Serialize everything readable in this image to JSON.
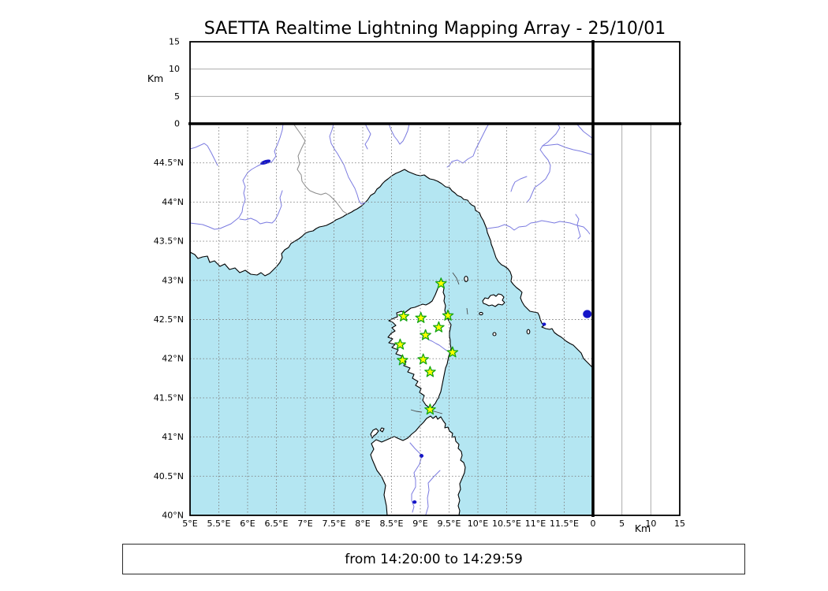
{
  "title": "SAETTA Realtime Lightning Mapping Array - 25/10/01",
  "time_window": "from 14:20:00 to 14:29:59",
  "colors": {
    "sea": "#b4e6f2",
    "land": "#ffffff",
    "coast": "#000000",
    "river": "#7b7be0",
    "country_border": "#8a8a8a",
    "grid": "#7f7f7f",
    "panel_grid": "#ababab",
    "station_fill": "#ffff00",
    "station_edge": "#12a512",
    "lake": "#1515c8"
  },
  "altitude_axis": {
    "label": "Km",
    "tick_values": [
      0,
      5,
      10,
      15
    ],
    "tick_labels": [
      "0",
      "5",
      "10",
      "15"
    ],
    "gridline_values": [
      5,
      10
    ],
    "range": [
      0,
      15
    ]
  },
  "bottom_km_axis": {
    "label": "Km",
    "tick_values": [
      0,
      5,
      10,
      15
    ],
    "tick_labels": [
      "0",
      "5",
      "10",
      "15"
    ],
    "gridline_values": [
      5,
      10
    ],
    "range": [
      0,
      15
    ]
  },
  "map_axes": {
    "lon_range": [
      5,
      12
    ],
    "lat_range": [
      40,
      45
    ],
    "lon_tick_values": [
      5,
      5.5,
      6,
      6.5,
      7,
      7.5,
      8,
      8.5,
      9,
      9.5,
      10,
      10.5,
      11,
      11.5
    ],
    "lon_tick_labels": [
      "5°E",
      "5.5°E",
      "6°E",
      "6.5°E",
      "7°E",
      "7.5°E",
      "8°E",
      "8.5°E",
      "9°E",
      "9.5°E",
      "10°E",
      "10.5°E",
      "11°E",
      "11.5°E"
    ],
    "lat_tick_values": [
      40,
      40.5,
      41,
      41.5,
      42,
      42.5,
      43,
      43.5,
      44,
      44.5
    ],
    "lat_tick_labels": [
      "40°N",
      "40.5°N",
      "41°N",
      "41.5°N",
      "42°N",
      "42.5°N",
      "43°N",
      "43.5°N",
      "44°N",
      "44.5°N"
    ]
  },
  "stations": [
    {
      "lon": 9.36,
      "lat": 42.96
    },
    {
      "lon": 8.71,
      "lat": 42.54
    },
    {
      "lon": 9.01,
      "lat": 42.52
    },
    {
      "lon": 9.48,
      "lat": 42.55
    },
    {
      "lon": 9.32,
      "lat": 42.4
    },
    {
      "lon": 9.09,
      "lat": 42.3
    },
    {
      "lon": 8.65,
      "lat": 42.18
    },
    {
      "lon": 9.56,
      "lat": 42.08
    },
    {
      "lon": 8.69,
      "lat": 41.98
    },
    {
      "lon": 9.05,
      "lat": 41.99
    },
    {
      "lon": 9.17,
      "lat": 41.83
    },
    {
      "lon": 9.17,
      "lat": 41.35
    }
  ],
  "lakes": [
    {
      "lon": 6.31,
      "lat": 44.51,
      "rx": 6.5,
      "ry": 2.3,
      "rot": -18
    },
    {
      "lon": 11.9,
      "lat": 42.57,
      "rx": 5.3,
      "ry": 5.0,
      "rot": 0
    },
    {
      "lon": 11.15,
      "lat": 42.44,
      "rx": 2.2,
      "ry": 1.8,
      "rot": 0
    },
    {
      "lon": 9.02,
      "lat": 40.76,
      "rx": 2.4,
      "ry": 2.2,
      "rot": 0
    },
    {
      "lon": 8.9,
      "lat": 40.17,
      "rx": 2.4,
      "ry": 2.0,
      "rot": 0
    }
  ]
}
